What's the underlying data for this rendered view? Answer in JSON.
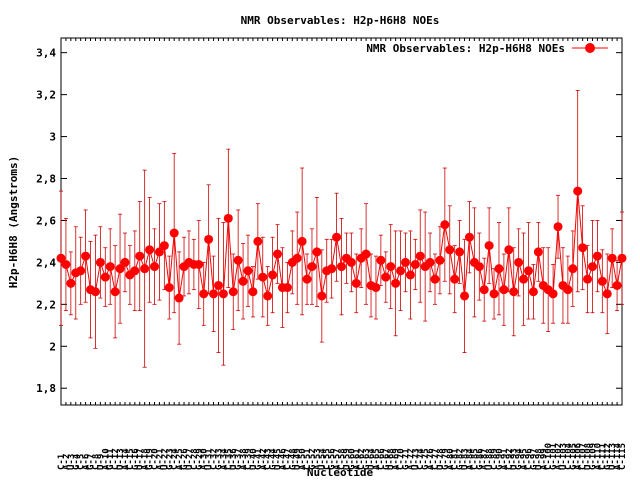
{
  "chart_data": {
    "type": "line",
    "title": "NMR Observables: H2p-H6H8 NOEs",
    "xlabel": "Nucleotide",
    "ylabel": "H2p-H6H8 (Angstroms)",
    "ylim": [
      1.72,
      3.47
    ],
    "yticks": [
      1.8,
      2,
      2.2,
      2.4,
      2.6,
      2.8,
      3,
      3.2,
      3.4
    ],
    "grid": false,
    "legend_position": "top-right",
    "series": [
      {
        "name": "NMR Observables: H2p-H6H8 NOEs",
        "color": "#ff0000",
        "marker": "circle",
        "values": [
          2.42,
          2.39,
          2.3,
          2.35,
          2.36,
          2.43,
          2.27,
          2.26,
          2.4,
          2.33,
          2.38,
          2.26,
          2.37,
          2.4,
          2.34,
          2.36,
          2.43,
          2.37,
          2.46,
          2.38,
          2.45,
          2.48,
          2.28,
          2.54,
          2.23,
          2.38,
          2.4,
          2.39,
          2.39,
          2.25,
          2.51,
          2.25,
          2.29,
          2.25,
          2.61,
          2.26,
          2.41,
          2.31,
          2.36,
          2.26,
          2.5,
          2.33,
          2.24,
          2.34,
          2.44,
          2.28,
          2.28,
          2.4,
          2.42,
          2.5,
          2.32,
          2.38,
          2.45,
          2.24,
          2.36,
          2.37,
          2.52,
          2.38,
          2.42,
          2.4,
          2.3,
          2.42,
          2.44,
          2.29,
          2.28,
          2.41,
          2.33,
          2.38,
          2.3,
          2.36,
          2.4,
          2.34,
          2.39,
          2.43,
          2.38,
          2.4,
          2.32,
          2.41,
          2.58,
          2.46,
          2.32,
          2.45,
          2.24,
          2.52,
          2.4,
          2.38,
          2.27,
          2.48,
          2.25,
          2.37,
          2.27,
          2.46,
          2.26,
          2.4,
          2.32,
          2.36,
          2.26,
          2.45,
          2.29,
          2.27,
          2.25,
          2.57,
          2.29,
          2.27,
          2.37,
          2.74,
          2.47,
          2.32,
          2.38,
          2.43,
          2.31,
          2.25,
          2.42,
          2.29,
          2.42
        ],
        "error": [
          0.32,
          0.22,
          0.15,
          0.22,
          0.16,
          0.22,
          0.23,
          0.27,
          0.17,
          0.14,
          0.18,
          0.22,
          0.26,
          0.14,
          0.14,
          0.19,
          0.26,
          0.47,
          0.25,
          0.18,
          0.23,
          0.21,
          0.15,
          0.38,
          0.22,
          0.14,
          0.15,
          0.12,
          0.21,
          0.15,
          0.26,
          0.18,
          0.32,
          0.34,
          0.33,
          0.18,
          0.24,
          0.18,
          0.17,
          0.12,
          0.18,
          0.19,
          0.14,
          0.18,
          0.14,
          0.19,
          0.12,
          0.15,
          0.22,
          0.35,
          0.12,
          0.18,
          0.26,
          0.22,
          0.15,
          0.14,
          0.21,
          0.23,
          0.12,
          0.14,
          0.14,
          0.14,
          0.24,
          0.15,
          0.15,
          0.12,
          0.12,
          0.2,
          0.25,
          0.19,
          0.14,
          0.21,
          0.12,
          0.22,
          0.26,
          0.14,
          0.12,
          0.16,
          0.27,
          0.21,
          0.16,
          0.15,
          0.27,
          0.17,
          0.26,
          0.16,
          0.15,
          0.18,
          0.12,
          0.22,
          0.17,
          0.2,
          0.21,
          0.16,
          0.22,
          0.23,
          0.13,
          0.14,
          0.18,
          0.2,
          0.14,
          0.15,
          0.18,
          0.16,
          0.18,
          0.48,
          0.2,
          0.16,
          0.22,
          0.17,
          0.15,
          0.19,
          0.14,
          0.12,
          0.22
        ]
      }
    ],
    "x_tick_labels": [
      "C-1",
      "A-2",
      "U-3",
      "G-4",
      "C-5",
      "A-6",
      "G-7",
      "C-8",
      "U-9",
      "A-10",
      "G-11",
      "C-12",
      "U-13",
      "A-14",
      "C-15",
      "G-16",
      "U-17",
      "A-18",
      "G-19",
      "C-20",
      "A-21",
      "U-22",
      "G-23",
      "C-24",
      "A-25",
      "G-26",
      "U-27",
      "C-28",
      "G-29",
      "A-30",
      "U-31",
      "C-32",
      "G-33",
      "A-34",
      "C-35",
      "U-36",
      "G-37",
      "A-38",
      "C-39",
      "U-40",
      "G-41",
      "A-42",
      "C-43",
      "G-44",
      "U-45",
      "A-46",
      "C-47",
      "G-48",
      "U-49",
      "A-50",
      "C-51",
      "G-52",
      "A-53",
      "U-54",
      "C-55",
      "G-56",
      "A-57",
      "C-58",
      "U-59",
      "G-60",
      "A-61",
      "C-62",
      "G-63",
      "U-64",
      "A-65",
      "C-66",
      "G-67",
      "U-68",
      "A-69",
      "C-70",
      "G-71",
      "A-72",
      "U-73",
      "C-74",
      "G-75",
      "A-76",
      "C-77",
      "U-78",
      "G-79",
      "A-80",
      "C-81",
      "G-82",
      "U-83",
      "A-84",
      "C-85",
      "G-86",
      "A-87",
      "U-88",
      "C-89",
      "G-90",
      "A-91",
      "C-92",
      "U-93",
      "G-94",
      "A-95",
      "C-96",
      "G-97",
      "U-98",
      "A-99",
      "C-100",
      "G-101",
      "A-102",
      "U-103",
      "C-104",
      "G-105",
      "A-106",
      "C-107",
      "U-108",
      "G-109",
      "A-110",
      "C-111",
      "G-112",
      "U-113",
      "A-114",
      "C-115"
    ]
  }
}
